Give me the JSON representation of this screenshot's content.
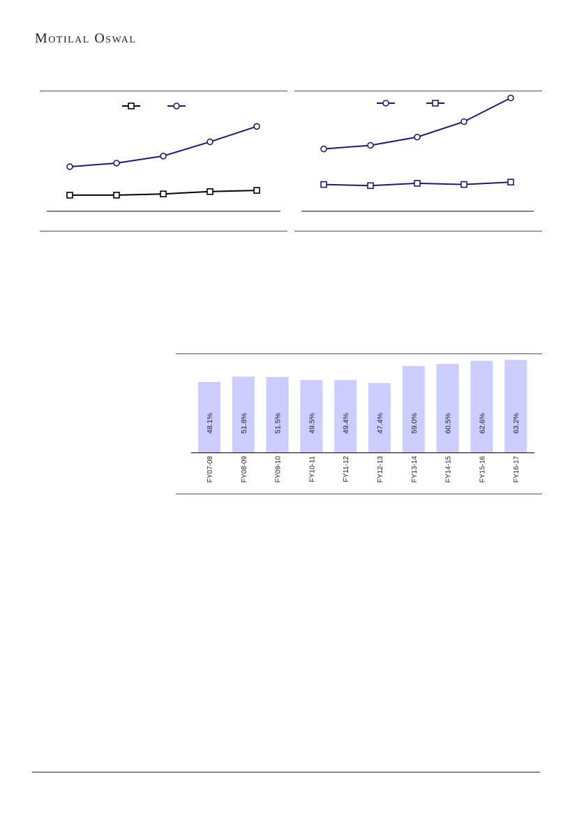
{
  "brand": {
    "first": "M",
    "first_rest": "OTILAL",
    "second": "O",
    "second_rest": "SWAL"
  },
  "colors": {
    "navy": "#1a1a7a",
    "black": "#000000",
    "bar": "#ccccff",
    "rule": "#4a4a8a"
  },
  "chart_data": [
    {
      "type": "line",
      "x": [
        1,
        2,
        3,
        4,
        5
      ],
      "ylim": [
        0,
        100
      ],
      "grid": false,
      "legend": "top-center",
      "series": [
        {
          "marker": "square",
          "color": "#000000",
          "values": [
            13,
            13,
            14,
            16,
            17
          ]
        },
        {
          "marker": "circle",
          "color": "#1a1a7a",
          "values": [
            37,
            40,
            46,
            58,
            71
          ]
        }
      ]
    },
    {
      "type": "line",
      "x": [
        1,
        2,
        3,
        4,
        5
      ],
      "ylim": [
        0,
        100
      ],
      "grid": false,
      "legend": "top-center",
      "series": [
        {
          "marker": "circle",
          "color": "#1a1a7a",
          "values": [
            52,
            55,
            62,
            75,
            95
          ]
        },
        {
          "marker": "square",
          "color": "#1a1a7a",
          "values": [
            22,
            21,
            23,
            22,
            24
          ]
        }
      ]
    },
    {
      "type": "bar",
      "categories": [
        "FY07-08",
        "FY08-09",
        "FY09-10",
        "FY10-11",
        "FY11-12",
        "FY12-13",
        "FY13-14",
        "FY14-15",
        "FY15-16",
        "FY16-17"
      ],
      "values": [
        48.1,
        51.8,
        51.5,
        49.5,
        49.4,
        47.4,
        59.0,
        60.5,
        62.6,
        63.2
      ],
      "labels": [
        "48.1%",
        "51.8%",
        "51.5%",
        "49.5%",
        "49.4%",
        "47.4%",
        "59.0%",
        "60.5%",
        "62.6%",
        "63.2%"
      ],
      "ylim": [
        0,
        70
      ],
      "grid": false,
      "color": "#ccccff"
    }
  ]
}
